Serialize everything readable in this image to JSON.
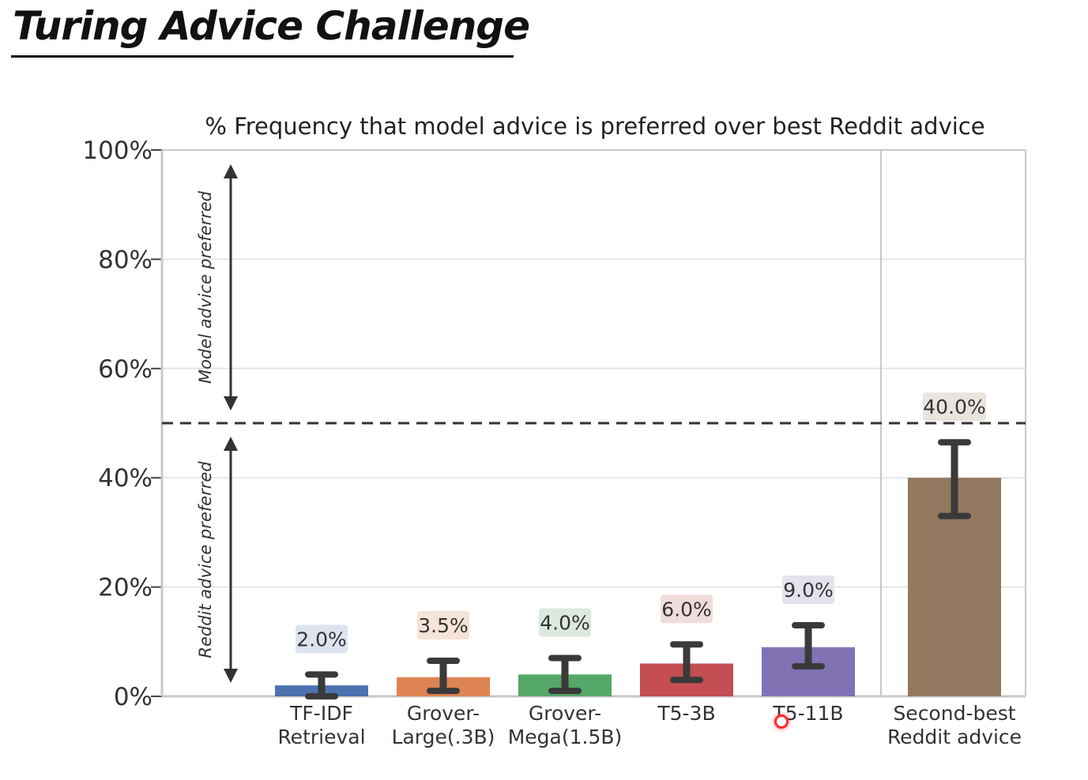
{
  "slide": {
    "title": "Turing Advice Challenge"
  },
  "colors": {
    "grid": "#e6e6e6",
    "axis": "#c8c8c8",
    "errorbar": "#3a3a3a",
    "baseline_dashed": "#333333",
    "cursor": "#ff2a2a"
  },
  "chart_data": {
    "type": "bar",
    "title": "% Frequency that model advice is preferred over best Reddit advice",
    "xlabel": "",
    "ylabel": "",
    "ylim": [
      0,
      100
    ],
    "yticks": [
      "0%",
      "20%",
      "40%",
      "60%",
      "80%",
      "100%"
    ],
    "ytick_values": [
      0,
      20,
      40,
      60,
      80,
      100
    ],
    "grid": true,
    "reference_line": {
      "value": 50,
      "style": "dashed"
    },
    "annotations": {
      "upper": "Model advice preferred",
      "lower": "Reddit advice preferred"
    },
    "categories": [
      "TF-IDF\nRetrieval",
      "Grover-\nLarge(.3B)",
      "Grover-\nMega(1.5B)",
      "T5-3B",
      "T5-11B",
      "Second-best\nReddit advice"
    ],
    "values": [
      2.0,
      3.5,
      4.0,
      6.0,
      9.0,
      40.0
    ],
    "value_labels": [
      "2.0%",
      "3.5%",
      "4.0%",
      "6.0%",
      "9.0%",
      "40.0%"
    ],
    "error_low": [
      0,
      1,
      1,
      3,
      5.5,
      33
    ],
    "error_high": [
      4,
      6.5,
      7,
      9.5,
      13,
      46.5
    ],
    "bar_colors": [
      "#4c72b0",
      "#dd8452",
      "#55a868",
      "#c44e52",
      "#8172b3",
      "#937860"
    ],
    "label_bg_colors": [
      "#dde3ef",
      "#f6e4d8",
      "#dde9df",
      "#f1dcdc",
      "#e4e2ee",
      "#e9e4dd"
    ]
  }
}
